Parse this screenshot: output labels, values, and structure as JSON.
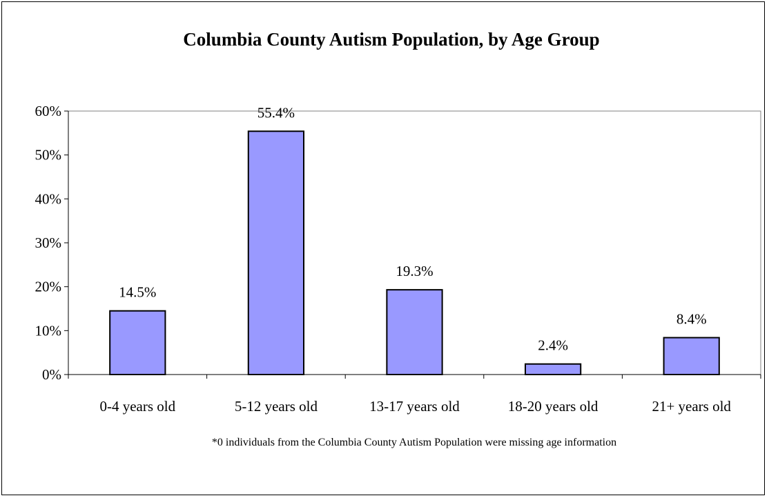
{
  "chart_data": {
    "type": "bar",
    "title": "Columbia County Autism Population, by Age Group",
    "categories": [
      "0-4 years old",
      "5-12 years old",
      "13-17 years old",
      "18-20 years old",
      "21+ years old"
    ],
    "values": [
      14.5,
      55.4,
      19.3,
      2.4,
      8.4
    ],
    "data_labels": [
      "14.5%",
      "55.4%",
      "19.3%",
      "2.4%",
      "8.4%"
    ],
    "y_ticks": [
      "0%",
      "10%",
      "20%",
      "30%",
      "40%",
      "50%",
      "60%"
    ],
    "ylim": [
      0,
      60
    ],
    "unit": "%",
    "grid": false,
    "legend": "none",
    "footnote": "*0 individuals from the Columbia County Autism Population were missing age information",
    "colors": {
      "bar_fill": "#9999ff",
      "bar_stroke": "#000000",
      "axis": "#000000",
      "plot_border": "#808080"
    }
  }
}
